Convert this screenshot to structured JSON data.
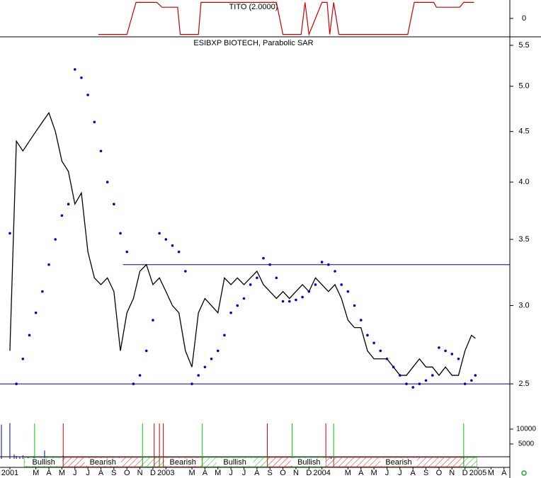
{
  "chart_data": {
    "type": "stock",
    "title": "ESIBXP BIOTECH, Parabolic SAR",
    "x": [
      0,
      0.5,
      1,
      1.5,
      2,
      2.5,
      3,
      3.5,
      4,
      4.5,
      5,
      5.5,
      6,
      6.5,
      7,
      7.5,
      8,
      8.5,
      9,
      9.5,
      10,
      10.5,
      11,
      11.5,
      12,
      12.5,
      13,
      13.5,
      14,
      14.5,
      15,
      15.5,
      16,
      16.5,
      17,
      17.5,
      18,
      18.5,
      19,
      19.5,
      20,
      20.5,
      21,
      21.5,
      22,
      22.5,
      23,
      23.5,
      24,
      24.5,
      25,
      25.5,
      26,
      26.5,
      27,
      27.5,
      28,
      28.5,
      29,
      29.5,
      30,
      30.5,
      31,
      31.5,
      32,
      32.5,
      33,
      33.5,
      34,
      34.5,
      35,
      35.5,
      35.8
    ],
    "xlim": [
      -0.76,
      38.45
    ],
    "xticks": [
      {
        "value": 0,
        "label": "2001"
      },
      {
        "value": 2,
        "label": "M"
      },
      {
        "value": 3,
        "label": "A"
      },
      {
        "value": 4,
        "label": "M"
      },
      {
        "value": 5,
        "label": "J"
      },
      {
        "value": 6,
        "label": "J"
      },
      {
        "value": 7,
        "label": "A"
      },
      {
        "value": 8,
        "label": "S"
      },
      {
        "value": 9,
        "label": "O"
      },
      {
        "value": 10,
        "label": "N"
      },
      {
        "value": 11,
        "label": "D"
      },
      {
        "value": 12,
        "label": "2003"
      },
      {
        "value": 14,
        "label": "M"
      },
      {
        "value": 15,
        "label": "A"
      },
      {
        "value": 16,
        "label": "M"
      },
      {
        "value": 17,
        "label": "J"
      },
      {
        "value": 18,
        "label": "J"
      },
      {
        "value": 19,
        "label": "A"
      },
      {
        "value": 20,
        "label": "S"
      },
      {
        "value": 21,
        "label": "O"
      },
      {
        "value": 22,
        "label": "N"
      },
      {
        "value": 23,
        "label": "D"
      },
      {
        "value": 24,
        "label": "2004"
      },
      {
        "value": 26,
        "label": "M"
      },
      {
        "value": 27,
        "label": "A"
      },
      {
        "value": 28,
        "label": "M"
      },
      {
        "value": 29,
        "label": "J"
      },
      {
        "value": 30,
        "label": "J"
      },
      {
        "value": 31,
        "label": "A"
      },
      {
        "value": 32,
        "label": "S"
      },
      {
        "value": 33,
        "label": "O"
      },
      {
        "value": 34,
        "label": "N"
      },
      {
        "value": 35,
        "label": "D"
      },
      {
        "value": 36,
        "label": "2005"
      },
      {
        "value": 37,
        "label": "M"
      },
      {
        "value": 38,
        "label": "A"
      }
    ],
    "ylim": [
      2.31,
      5.61
    ],
    "log_scale": true,
    "yticks": [
      2.5,
      {
        "value": 3,
        "label": "3.0"
      },
      3.5,
      {
        "value": 4,
        "label": "4.0"
      },
      4.5,
      {
        "value": 5,
        "label": "5.0"
      },
      5.5
    ],
    "series": [
      {
        "color": "#000000",
        "style": "line",
        "values": [
          2.7,
          4.4,
          4.3,
          4.4,
          4.5,
          4.6,
          4.7,
          4.5,
          4.2,
          4.1,
          3.8,
          3.9,
          3.4,
          3.2,
          3.15,
          3.2,
          3.1,
          2.7,
          2.95,
          3.05,
          3.25,
          3.3,
          3.15,
          3.2,
          3.1,
          3.0,
          2.95,
          2.7,
          2.6,
          2.95,
          3.05,
          3.0,
          2.95,
          3.2,
          3.15,
          3.2,
          3.15,
          3.2,
          3.25,
          3.15,
          3.1,
          3.05,
          3.1,
          3.05,
          3.1,
          3.15,
          3.1,
          3.2,
          3.15,
          3.1,
          3.15,
          3.05,
          2.9,
          2.85,
          2.85,
          2.7,
          2.65,
          2.65,
          2.65,
          2.6,
          2.55,
          2.55,
          2.6,
          2.65,
          2.6,
          2.6,
          2.55,
          2.6,
          2.55,
          2.55,
          2.7,
          2.8,
          2.78
        ]
      },
      {
        "color": "#0000cc",
        "style": "dots",
        "values": [
          3.55,
          2.5,
          2.65,
          2.8,
          2.95,
          3.1,
          3.3,
          3.5,
          3.7,
          3.8,
          5.2,
          5.1,
          4.9,
          4.6,
          4.3,
          4.0,
          3.8,
          3.55,
          3.4,
          2.5,
          2.55,
          2.7,
          2.9,
          3.55,
          3.5,
          3.45,
          3.4,
          3.25,
          2.5,
          2.55,
          2.6,
          2.65,
          2.7,
          2.8,
          2.95,
          3.0,
          3.05,
          3.15,
          3.2,
          3.35,
          3.3,
          3.2,
          3.03,
          3.03,
          3.04,
          3.06,
          3.1,
          3.15,
          3.32,
          3.3,
          3.25,
          3.15,
          3.1,
          3.0,
          2.9,
          2.8,
          2.75,
          2.7,
          2.65,
          2.6,
          2.55,
          2.5,
          2.48,
          2.5,
          2.52,
          2.55,
          2.72,
          2.7,
          2.68,
          2.65,
          2.5,
          2.52,
          2.55
        ]
      }
    ],
    "levels": [
      {
        "value": 3.3,
        "from": 8.7,
        "color": "#0000aa"
      },
      {
        "value": 2.5,
        "from": -0.76,
        "color": "#0000aa"
      }
    ],
    "tito": {
      "title": "TITO (2.0000)",
      "color": "#cc0000",
      "x": [
        6.8,
        9.0,
        9.7,
        11.3,
        11.7,
        12.9,
        13.1,
        14.5,
        14.7,
        20.5,
        21.0,
        22.4,
        22.7,
        23.0,
        24.0,
        24.4,
        24.6,
        24.9,
        25.3,
        30.6,
        31.1,
        32.6,
        32.8,
        34.6,
        34.9,
        35.7
      ],
      "values": [
        -1,
        -1,
        1,
        1,
        0.7,
        0.7,
        -1,
        -1,
        1,
        1,
        -1,
        -1,
        1,
        -1,
        1,
        1,
        -1,
        1,
        -1,
        -1,
        1,
        1,
        0.7,
        0.7,
        1,
        1
      ],
      "ylim": [
        -1.15,
        1.15
      ],
      "yticks": [
        0
      ]
    },
    "volume": {
      "color": "#0000cc",
      "x": [
        -0.65,
        0,
        0.33,
        0.5,
        0.76,
        1.0,
        1.4,
        1.85,
        2.67,
        4.1,
        24.7,
        34.9
      ],
      "values": [
        11500,
        12000,
        1500,
        1000,
        600,
        1200,
        500,
        900,
        2800,
        1100,
        600,
        800
      ],
      "ylim": [
        0,
        12600
      ],
      "yticks": [
        10000,
        5000
      ]
    },
    "signals": {
      "buy": {
        "color": "#00cc00",
        "x": [
          1.9,
          10.2,
          14.8,
          21.7,
          24.9,
          34.9
        ]
      },
      "sell": {
        "color": "#cc0000",
        "x": [
          4.1,
          11.1,
          11.5,
          11.8,
          19.8,
          24.3
        ]
      }
    },
    "regions": [
      {
        "start": 1.1,
        "end": 4.1,
        "label": "Bullish",
        "color": "#22aa22"
      },
      {
        "start": 4.1,
        "end": 10.2,
        "label": "Bearish",
        "color": "#cc2222"
      },
      {
        "start": 10.2,
        "end": 11.1,
        "label": null,
        "color": "#22aa22"
      },
      {
        "start": 11.1,
        "end": 11.5,
        "label": null,
        "color": "#cc2222"
      },
      {
        "start": 11.5,
        "end": 11.8,
        "label": null,
        "color": "#22aa22"
      },
      {
        "start": 11.8,
        "end": 14.8,
        "label": "Bearish",
        "color": "#cc2222"
      },
      {
        "start": 14.8,
        "end": 19.8,
        "label": "Bullish",
        "color": "#22aa22"
      },
      {
        "start": 19.8,
        "end": 21.7,
        "label": null,
        "color": "#cc2222"
      },
      {
        "start": 21.7,
        "end": 24.3,
        "label": "Bullish",
        "color": "#22aa22"
      },
      {
        "start": 24.3,
        "end": 24.9,
        "label": null,
        "color": "#cc2222"
      },
      {
        "start": 24.9,
        "end": 34.9,
        "label": "Bearish",
        "color": "#cc2222"
      },
      {
        "start": 34.9,
        "end": 35.9,
        "label": null,
        "color": "#22aa22"
      }
    ]
  }
}
